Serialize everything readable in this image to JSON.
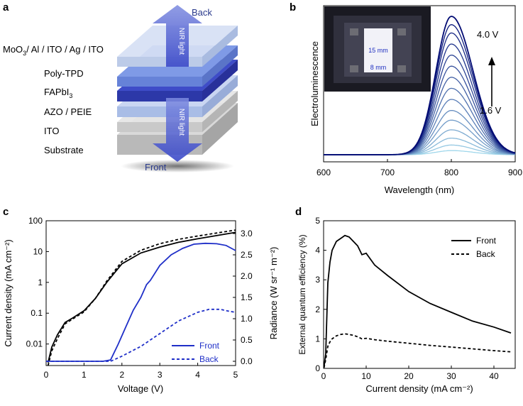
{
  "panel_labels": {
    "a": "a",
    "b": "b",
    "c": "c",
    "d": "d"
  },
  "colors": {
    "front": "#1f2fc8",
    "back": "#1f2fc8",
    "black": "#000000",
    "arrow": "#5a6ad8"
  },
  "panel_a": {
    "direction_back": "Back",
    "direction_front": "Front",
    "nir_top": "NIR light",
    "nir_bottom": "NIR light",
    "layer_moo3": "MoO",
    "layer_moo3_sub": "3",
    "layer_moo3_rest": "/ Al / ITO / Ag / ITO",
    "layer_polytpd": "Poly-TPD",
    "layer_fapbi": "FAPbI",
    "layer_fapbi_sub": "3",
    "layer_azo": "AZO / PEIE",
    "layer_ito": "ITO",
    "layer_substrate": "Substrate"
  },
  "chart_data": [
    {
      "type": "line",
      "panel": "b",
      "title": "",
      "xlabel": "Wavelength (nm)",
      "ylabel": "Electroluminescence",
      "xlim": [
        600,
        900
      ],
      "xticks": [
        "600",
        "700",
        "800",
        "900"
      ],
      "peak_nm": 800,
      "voltage_low": "1.6 V",
      "voltage_high": "4.0 V",
      "inset_width_label": "15 mm",
      "inset_height_label": "8 mm",
      "series_peak_levels": [
        0.03,
        0.07,
        0.12,
        0.18,
        0.25,
        0.32,
        0.4,
        0.48,
        0.56,
        0.64,
        0.72,
        0.8,
        0.88,
        0.94,
        1.0
      ]
    },
    {
      "type": "line",
      "panel": "c",
      "xlabel": "Voltage (V)",
      "ylabel_left": "Current density (mA cm⁻²)",
      "ylabel_right": "Radiance (W sr⁻¹ m⁻²)",
      "xlim": [
        0,
        5
      ],
      "ylim_left": [
        0.002,
        100
      ],
      "ylim_right": [
        -0.1,
        3.3
      ],
      "xticks": [
        "0",
        "1",
        "2",
        "3",
        "4",
        "5"
      ],
      "yticks_left": [
        "0.01",
        "0.1",
        "1",
        "10",
        "100"
      ],
      "yticks_right": [
        "0.0",
        "0.5",
        "1.0",
        "1.5",
        "2.0",
        "2.5",
        "3.0"
      ],
      "legend": [
        "Front",
        "Back"
      ],
      "series": [
        {
          "name": "Current density front",
          "axis": "left",
          "x": [
            0.05,
            0.15,
            0.3,
            0.5,
            0.7,
            1.0,
            1.3,
            1.6,
            2.0,
            2.5,
            3.0,
            3.5,
            4.0,
            4.5,
            5.0
          ],
          "y": [
            0.0025,
            0.008,
            0.02,
            0.05,
            0.07,
            0.12,
            0.3,
            1.0,
            4.0,
            9.0,
            14,
            20,
            26,
            33,
            42
          ]
        },
        {
          "name": "Current density back",
          "axis": "left",
          "x": [
            0.05,
            0.15,
            0.3,
            0.5,
            0.7,
            1.0,
            1.3,
            1.6,
            2.0,
            2.5,
            3.0,
            3.5,
            4.0,
            4.5,
            5.0
          ],
          "y": [
            0.002,
            0.006,
            0.015,
            0.045,
            0.065,
            0.11,
            0.3,
            1.1,
            4.8,
            11,
            18,
            25,
            32,
            40,
            50
          ]
        },
        {
          "name": "Front",
          "axis": "right",
          "x": [
            0,
            1.5,
            1.7,
            1.9,
            2.1,
            2.3,
            2.5,
            2.65,
            2.75,
            3.0,
            3.3,
            3.6,
            3.9,
            4.2,
            4.5,
            4.75,
            5.0
          ],
          "y": [
            0.0,
            0.0,
            0.03,
            0.4,
            0.8,
            1.2,
            1.5,
            1.8,
            1.9,
            2.25,
            2.5,
            2.65,
            2.75,
            2.77,
            2.76,
            2.72,
            2.6
          ]
        },
        {
          "name": "Back",
          "axis": "right",
          "x": [
            0,
            1.7,
            2.0,
            2.5,
            3.0,
            3.5,
            4.0,
            4.3,
            4.6,
            4.8,
            5.0
          ],
          "y": [
            0.0,
            0.0,
            0.12,
            0.35,
            0.65,
            0.95,
            1.15,
            1.22,
            1.22,
            1.18,
            1.15
          ]
        }
      ]
    },
    {
      "type": "line",
      "panel": "d",
      "xlabel": "Current density (mA cm⁻²)",
      "ylabel": "External quantum efficiency (%)",
      "xlim": [
        0,
        45
      ],
      "ylim": [
        0,
        5
      ],
      "xticks": [
        "0",
        "10",
        "20",
        "30",
        "40"
      ],
      "yticks": [
        "0",
        "1",
        "2",
        "3",
        "4",
        "5"
      ],
      "legend": [
        "Front",
        "Back"
      ],
      "series": [
        {
          "name": "Front",
          "x": [
            0.1,
            0.5,
            1,
            1.5,
            2,
            3,
            4,
            5,
            6,
            7,
            8,
            9,
            10,
            12,
            15,
            20,
            25,
            30,
            35,
            40,
            44
          ],
          "y": [
            0.05,
            0.5,
            2.9,
            3.6,
            4.0,
            4.3,
            4.4,
            4.5,
            4.45,
            4.3,
            4.15,
            3.85,
            3.9,
            3.5,
            3.15,
            2.6,
            2.2,
            1.9,
            1.6,
            1.4,
            1.2
          ]
        },
        {
          "name": "Back",
          "x": [
            0.1,
            0.5,
            1,
            1.5,
            2,
            3,
            4,
            5,
            6,
            7,
            8,
            9,
            10,
            12,
            15,
            20,
            25,
            30,
            35,
            40,
            44
          ],
          "y": [
            0.02,
            0.3,
            0.75,
            0.9,
            1.0,
            1.1,
            1.15,
            1.17,
            1.15,
            1.12,
            1.07,
            1.0,
            1.02,
            0.97,
            0.92,
            0.85,
            0.78,
            0.72,
            0.66,
            0.6,
            0.56
          ]
        }
      ]
    }
  ]
}
